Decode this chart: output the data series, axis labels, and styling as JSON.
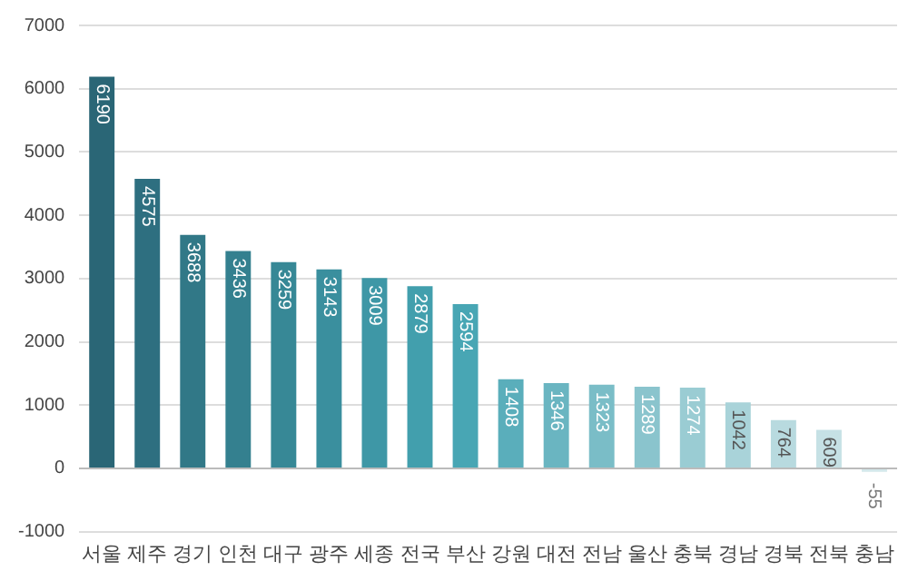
{
  "chart_data": {
    "type": "bar",
    "categories": [
      "서울",
      "제주",
      "경기",
      "인천",
      "대구",
      "광주",
      "세종",
      "전국",
      "부산",
      "강원",
      "대전",
      "전남",
      "울산",
      "충북",
      "경남",
      "경북",
      "전북",
      "충남"
    ],
    "values": [
      6190,
      4575,
      3688,
      3436,
      3259,
      3143,
      3009,
      2879,
      2594,
      1408,
      1346,
      1323,
      1289,
      1274,
      1042,
      764,
      609,
      -55
    ],
    "colors": [
      "#2a6676",
      "#2e6f80",
      "#317887",
      "#34808f",
      "#378896",
      "#3a8f9e",
      "#3e97a6",
      "#429fad",
      "#48a6b4",
      "#5aaebb",
      "#6ab5c1",
      "#7abdc7",
      "#8ac4cd",
      "#9accd3",
      "#a9d3d9",
      "#b8dadf",
      "#c6e1e5",
      "#d4e8eb"
    ],
    "ylim": [
      -1000,
      7000
    ],
    "yticks": [
      -1000,
      0,
      1000,
      2000,
      3000,
      4000,
      5000,
      6000,
      7000
    ],
    "grid": "y",
    "legend": false,
    "data_labels": true
  }
}
